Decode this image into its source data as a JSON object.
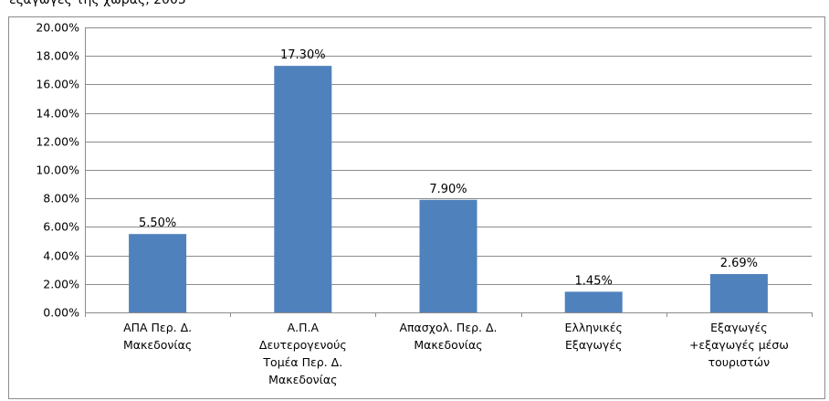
{
  "caption": "εξαγωγές της χώρας, 2005",
  "chart_data": {
    "type": "bar",
    "categories": [
      [
        "ΑΠΑ Περ. Δ.",
        "Μακεδονίας"
      ],
      [
        "Α.Π.Α",
        "Δευτερογενούς",
        "Τομέα Περ. Δ.",
        "Μακεδονίας"
      ],
      [
        "Απασχολ. Περ. Δ.",
        "Μακεδονίας"
      ],
      [
        "Ελληνικές",
        "Εξαγωγές"
      ],
      [
        "Εξαγωγές",
        "+εξαγωγές μέσω",
        "τουριστών"
      ]
    ],
    "values": [
      5.5,
      17.3,
      7.9,
      1.45,
      2.69
    ],
    "data_labels": [
      "5.50%",
      "17.30%",
      "7.90%",
      "1.45%",
      "2.69%"
    ],
    "y_ticks": [
      "0.00%",
      "2.00%",
      "4.00%",
      "6.00%",
      "8.00%",
      "10.00%",
      "12.00%",
      "14.00%",
      "16.00%",
      "18.00%",
      "20.00%"
    ],
    "ylim": [
      0,
      20
    ],
    "grid": true,
    "legend": "none",
    "bar_color": "#4f81bd",
    "grid_color": "#8c8c8c"
  }
}
